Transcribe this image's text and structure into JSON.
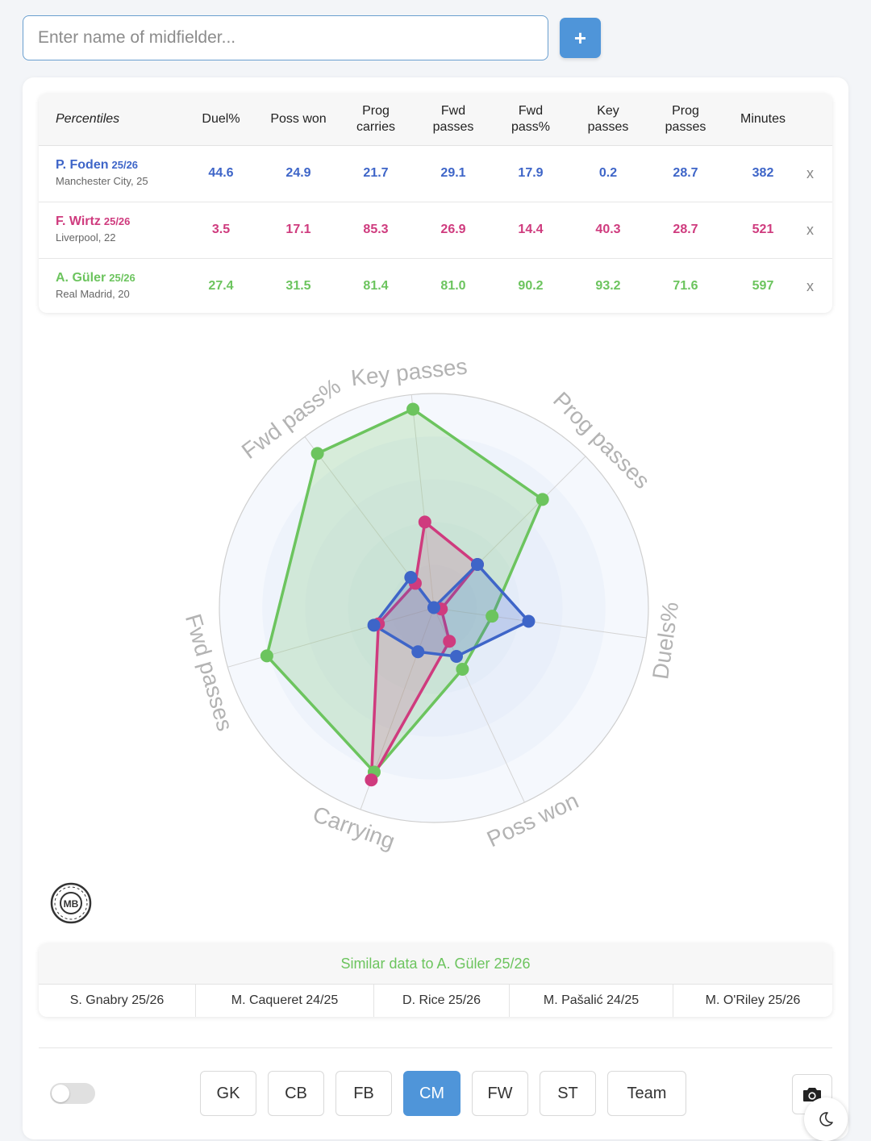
{
  "search": {
    "placeholder": "Enter name of midfielder...",
    "add_label": "+"
  },
  "colors": {
    "foden": "#3e65c8",
    "wirtz": "#cf3b7e",
    "guler": "#6cc45e",
    "accent": "#4f95d9"
  },
  "table": {
    "headers": [
      "Percentiles",
      "Duel%",
      "Poss won",
      "Prog\ncarries",
      "Fwd\npasses",
      "Fwd\npass%",
      "Key\npasses",
      "Prog\npasses",
      "Minutes"
    ],
    "rows": [
      {
        "name": "P. Foden",
        "season": "25/26",
        "club": "Manchester City, 25",
        "color": "#3e65c8",
        "values": [
          "44.6",
          "24.9",
          "21.7",
          "29.1",
          "17.9",
          "0.2",
          "28.7",
          "382"
        ],
        "remove": "x"
      },
      {
        "name": "F. Wirtz",
        "season": "25/26",
        "club": "Liverpool, 22",
        "color": "#cf3b7e",
        "values": [
          "3.5",
          "17.1",
          "85.3",
          "26.9",
          "14.4",
          "40.3",
          "28.7",
          "521"
        ],
        "remove": "x"
      },
      {
        "name": "A. Güler",
        "season": "25/26",
        "club": "Real Madrid, 20",
        "color": "#6cc45e",
        "values": [
          "27.4",
          "31.5",
          "81.4",
          "81.0",
          "90.2",
          "93.2",
          "71.6",
          "597"
        ],
        "remove": "x"
      }
    ]
  },
  "chart_data": {
    "type": "radar",
    "axes": [
      "Key passes",
      "Prog passes",
      "Duels%",
      "Poss won",
      "Carrying",
      "Fwd passes",
      "Fwd pass%"
    ],
    "range": [
      0,
      100
    ],
    "series": [
      {
        "name": "P. Foden",
        "color": "#3e65c8",
        "values": [
          0.2,
          28.7,
          44.6,
          24.9,
          21.7,
          29.1,
          17.9
        ]
      },
      {
        "name": "F. Wirtz",
        "color": "#cf3b7e",
        "values": [
          40.3,
          28.7,
          3.5,
          17.1,
          85.3,
          26.9,
          14.4
        ]
      },
      {
        "name": "A. Güler",
        "color": "#6cc45e",
        "values": [
          93.2,
          71.6,
          27.4,
          31.5,
          81.4,
          81.0,
          90.2
        ]
      }
    ]
  },
  "logo": {
    "text": "MB"
  },
  "similar": {
    "title": "Similar data to A. Güler 25/26",
    "items": [
      "S. Gnabry 25/26",
      "M. Caqueret 24/25",
      "D. Rice 25/26",
      "M. Pašalić 24/25",
      "M. O'Riley 25/26"
    ]
  },
  "positions": {
    "buttons": [
      "GK",
      "CB",
      "FB",
      "CM",
      "FW",
      "ST",
      "Team"
    ],
    "active": "CM"
  },
  "icons": {
    "camera": "camera-icon",
    "theme": "moon-icon"
  }
}
